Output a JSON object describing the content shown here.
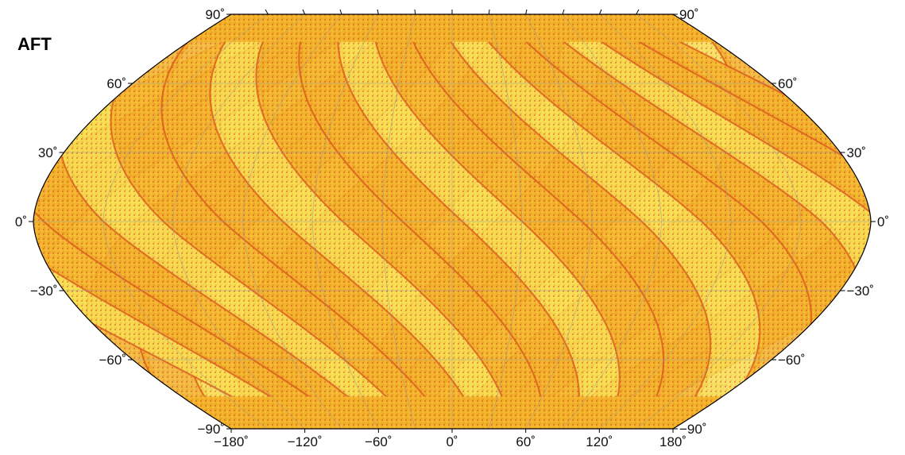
{
  "map": {
    "title": "AFT",
    "projection": "Winkel-like pseudo-cylindrical (world)",
    "lat_labels": [
      {
        "value": 90,
        "text": "90˚"
      },
      {
        "value": 60,
        "text": "60˚"
      },
      {
        "value": 30,
        "text": "30˚"
      },
      {
        "value": 0,
        "text": "0˚"
      },
      {
        "value": -30,
        "text": "−30˚"
      },
      {
        "value": -60,
        "text": "−60˚"
      },
      {
        "value": -90,
        "text": "−90˚"
      }
    ],
    "lon_labels": [
      {
        "value": -180,
        "text": "−180˚"
      },
      {
        "value": -120,
        "text": "−120˚"
      },
      {
        "value": -60,
        "text": "−60˚"
      },
      {
        "value": 0,
        "text": "0˚"
      },
      {
        "value": 60,
        "text": "60˚"
      },
      {
        "value": 120,
        "text": "120˚"
      },
      {
        "value": 180,
        "text": "180˚"
      }
    ],
    "grid_lon_step": 30,
    "grid_lat_step": 30,
    "colors": {
      "swath_base": "#f2b22a",
      "swath_light": "#f7de52",
      "swath_dark": "#d8561f",
      "swath_red": "#c83218",
      "land": "#f2f0dc",
      "grid": "#9a9a9a",
      "outline": "#000000",
      "coast": "#7a7a7a"
    },
    "swath_count_per_direction": 14
  }
}
